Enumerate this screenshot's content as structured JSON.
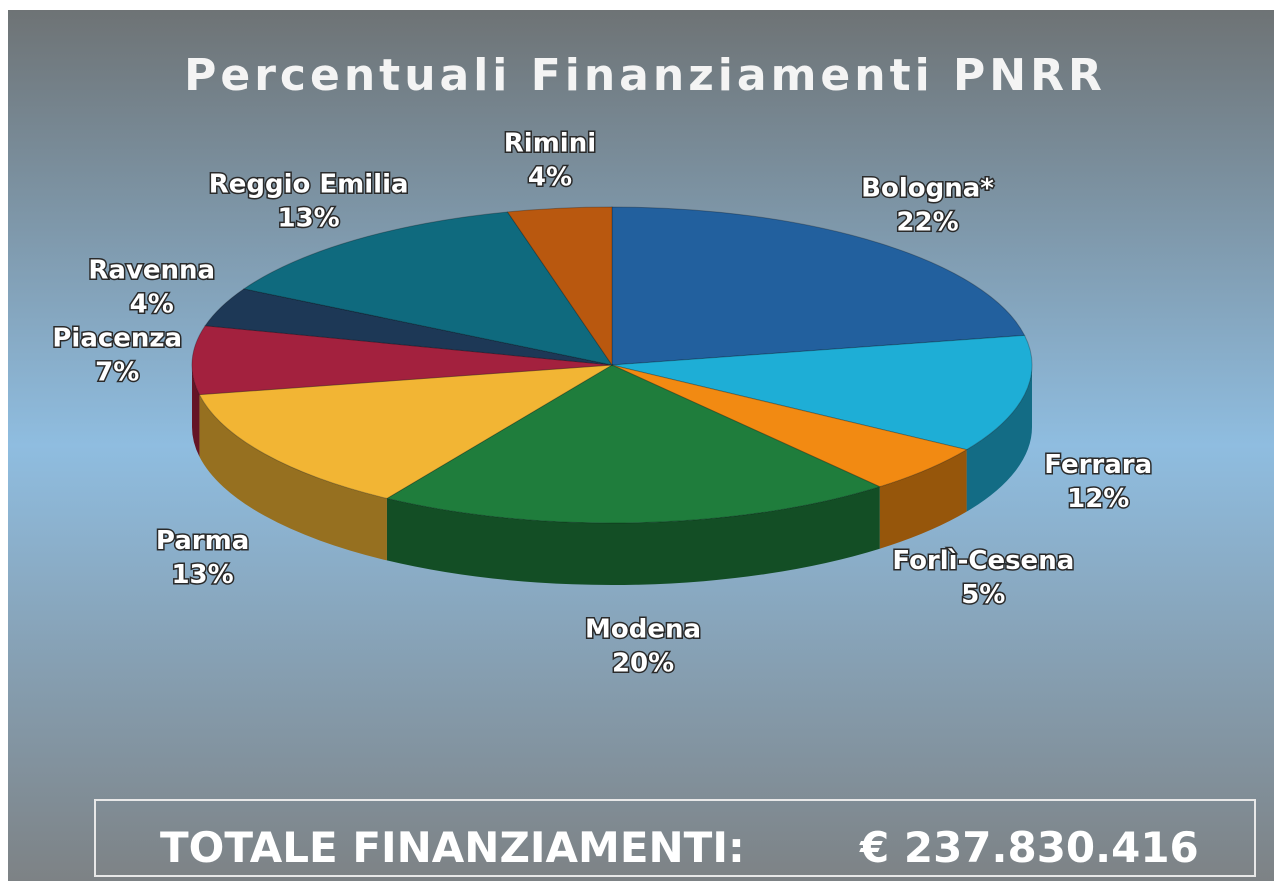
{
  "chart_data": {
    "type": "pie3d",
    "title": "Percentuali Finanziamenti PNRR",
    "categories": [
      "Bologna*",
      "Ferrara",
      "Forlì-Cesena",
      "Modena",
      "Parma",
      "Piacenza",
      "Ravenna",
      "Reggio Emilia",
      "Rimini"
    ],
    "values": [
      22,
      12,
      5,
      20,
      13,
      7,
      4,
      13,
      4
    ],
    "value_labels": [
      "22%",
      "12%",
      "5%",
      "20%",
      "13%",
      "7%",
      "4%",
      "13%",
      "4%"
    ],
    "colors": [
      "#22609e",
      "#1eaed6",
      "#f28a12",
      "#1f7d3c",
      "#f2b534",
      "#a3213e",
      "#1d3856",
      "#0f6a7e",
      "#b9580f"
    ],
    "total_label": "TOTALE FINANZIAMENTI:",
    "total_value": "€ 237.830.416"
  }
}
